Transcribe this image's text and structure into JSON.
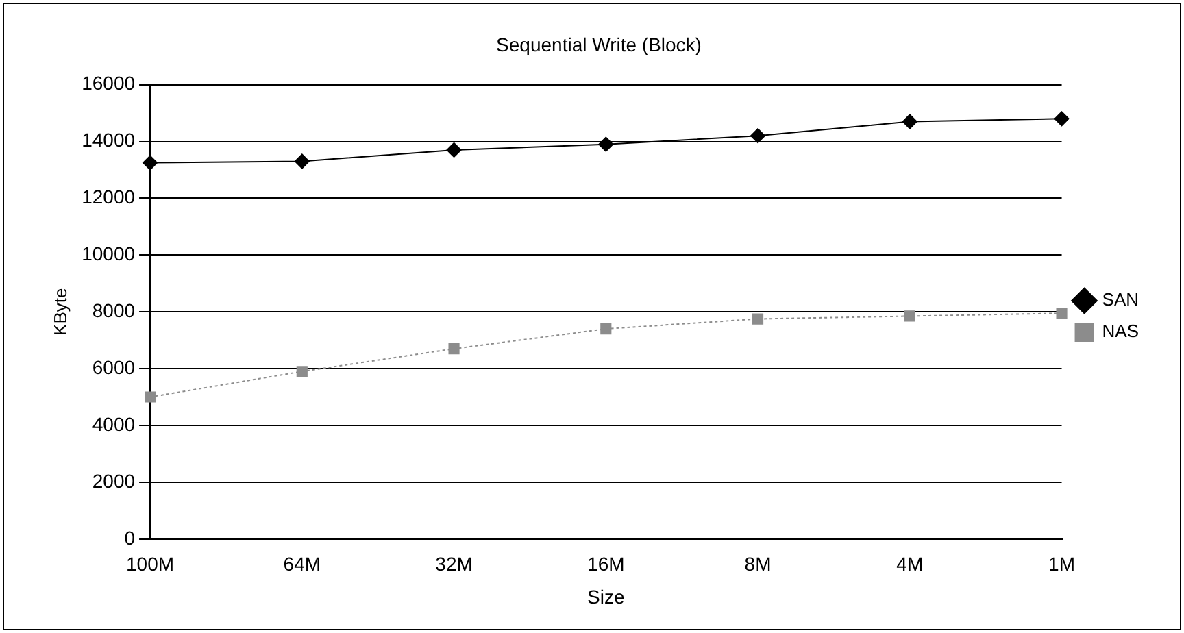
{
  "chart_data": {
    "type": "line",
    "title": "Sequential Write (Block)",
    "xlabel": "Size",
    "ylabel": "KByte",
    "categories": [
      "100M",
      "64M",
      "32M",
      "16M",
      "8M",
      "4M",
      "1M"
    ],
    "series": [
      {
        "name": "SAN",
        "color": "#000000",
        "marker": "diamond",
        "line_style": "solid",
        "values": [
          13250,
          13300,
          13700,
          13900,
          14200,
          14700,
          14800
        ]
      },
      {
        "name": "NAS",
        "color": "#8c8c8c",
        "marker": "square",
        "line_style": "dotted",
        "values": [
          5000,
          5900,
          6700,
          7400,
          7750,
          7850,
          7950
        ]
      }
    ],
    "ylim": [
      0,
      16000
    ],
    "yticks": [
      0,
      2000,
      4000,
      6000,
      8000,
      10000,
      12000,
      14000,
      16000
    ],
    "grid": "y",
    "legend": "right"
  }
}
